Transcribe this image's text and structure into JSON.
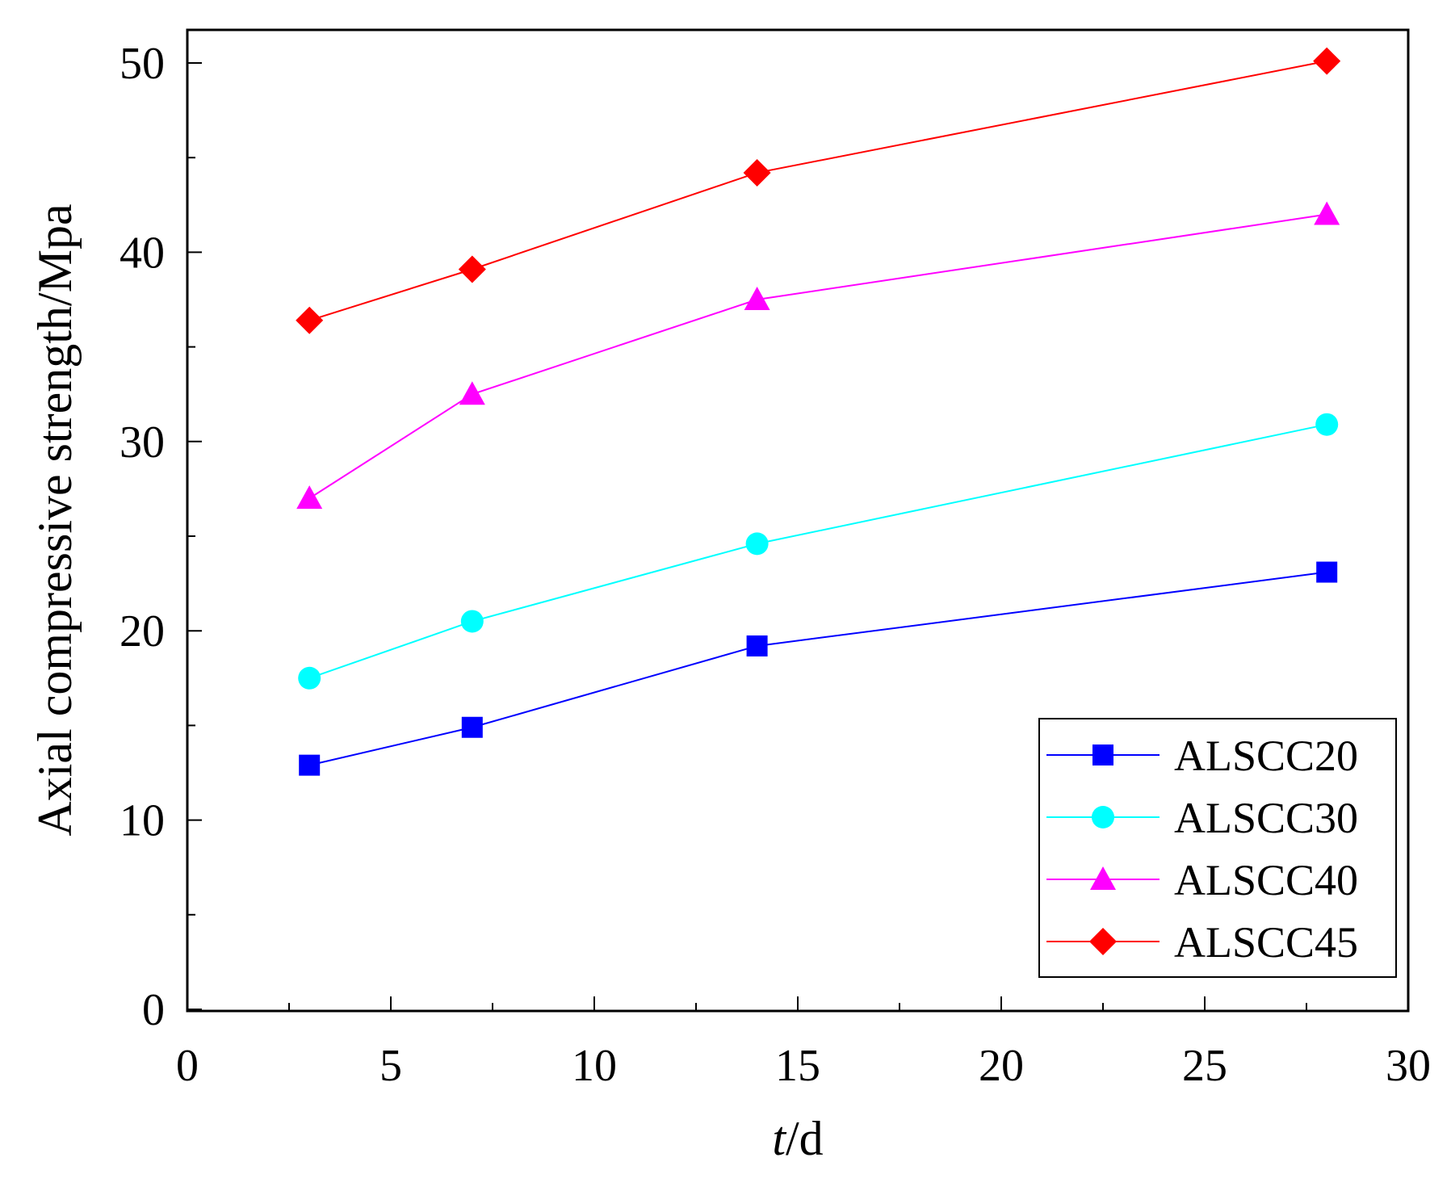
{
  "chart_data": {
    "type": "line",
    "title": "",
    "xlabel_italic": "t",
    "xlabel_unit": "/d",
    "ylabel": "Axial compressive strength/Mpa",
    "xlim": [
      0,
      30
    ],
    "ylim": [
      0,
      52
    ],
    "xticks": [
      0,
      5,
      10,
      15,
      20,
      25,
      30
    ],
    "yticks": [
      0,
      10,
      20,
      30,
      40,
      50
    ],
    "x": [
      3,
      7,
      14,
      28
    ],
    "legend_position": "bottom-right",
    "series": [
      {
        "name": "ALSCC20",
        "values": [
          12.9,
          14.9,
          19.2,
          23.1
        ],
        "color": "#0000ff",
        "marker": "square"
      },
      {
        "name": "ALSCC30",
        "values": [
          17.5,
          20.5,
          24.6,
          30.9
        ],
        "color": "#00ffff",
        "marker": "circle"
      },
      {
        "name": "ALSCC40",
        "values": [
          27.0,
          32.5,
          37.5,
          42.0
        ],
        "color": "#ff00ff",
        "marker": "triangle"
      },
      {
        "name": "ALSCC45",
        "values": [
          36.4,
          39.1,
          44.2,
          50.1
        ],
        "color": "#ff0000",
        "marker": "diamond"
      }
    ]
  }
}
